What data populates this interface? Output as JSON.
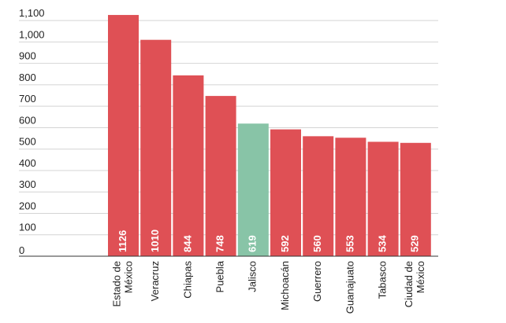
{
  "chart_data": {
    "type": "bar",
    "categories": [
      "Estado de México",
      "Veracruz",
      "Chiapas",
      "Puebla",
      "Jalisco",
      "Michoacán",
      "Guerrero",
      "Guanajuato",
      "Tabasco",
      "Ciudad de México"
    ],
    "category_lines": [
      [
        "Estado de",
        "México"
      ],
      [
        "Veracruz"
      ],
      [
        "Chiapas"
      ],
      [
        "Puebla"
      ],
      [
        "Jalisco"
      ],
      [
        "Michoacán"
      ],
      [
        "Guerrero"
      ],
      [
        "Guanajuato"
      ],
      [
        "Tabasco"
      ],
      [
        "Ciudad de",
        "México"
      ]
    ],
    "values": [
      1126,
      1010,
      844,
      748,
      619,
      592,
      560,
      553,
      534,
      529
    ],
    "value_labels": [
      "1126",
      "1010",
      "844",
      "748",
      "619",
      "592",
      "560",
      "553",
      "534",
      "529"
    ],
    "highlight_index": 4,
    "colors": {
      "default": "#df5055",
      "highlight": "#88c4a7",
      "grid": "#d4d4d4",
      "text": "#222222",
      "value_text": "#ffffff"
    },
    "yticks": [
      0,
      100,
      200,
      300,
      400,
      500,
      600,
      700,
      800,
      900,
      1000,
      1100
    ],
    "ytick_labels": [
      "0",
      "100",
      "200",
      "300",
      "400",
      "500",
      "600",
      "700",
      "800",
      "900",
      "1,000",
      "1,100"
    ],
    "ylim": [
      0,
      1100
    ],
    "grid": true,
    "legend": "none",
    "title": "",
    "xlabel": "",
    "ylabel": ""
  }
}
